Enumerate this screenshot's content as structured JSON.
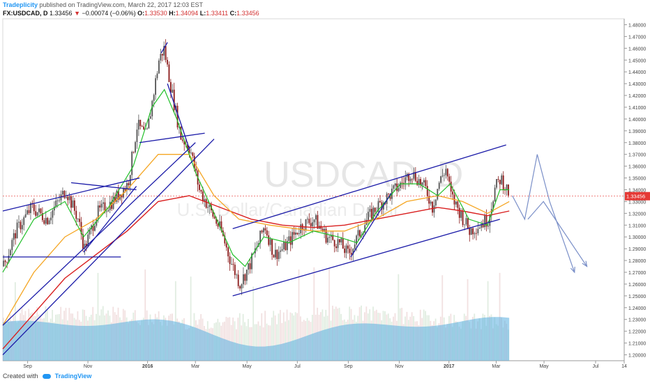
{
  "header": {
    "brand": "Tradeplicity",
    "published": "published on TradingView.com, March 22, 2017 12:03 EST"
  },
  "symbol_line": {
    "symbol": "FX:USDCAD, D",
    "last": "1.33456",
    "arrow": "▼",
    "change": "−0.00074 (−0.06%)",
    "o_label": "O:",
    "o_value": "1.33530",
    "h_label": "H:",
    "h_value": "1.34094",
    "l_label": "L:",
    "l_value": "1.33411",
    "c_label": "C:",
    "c_value": "1.33456"
  },
  "footer": {
    "created_with": "Created with",
    "tradingview": "TradingView"
  },
  "colors": {
    "up_candle": "#555555",
    "down_candle": "#8b1a1a",
    "ma_fast": "#22c02a",
    "ma_mid": "#f5a623",
    "ma_slow": "#d91e1e",
    "trendline": "#1a1aa8",
    "projection": "#7a8fc8",
    "volume": "#5aaee0",
    "price_tag": "#e53935"
  },
  "chart_data": {
    "type": "candlestick",
    "symbol": "USDCAD",
    "watermark": "USDCAD, D",
    "watermark_sub": "U.S. Dollar/Canadian Dollar",
    "ylim": [
      1.195,
      1.485
    ],
    "y_ticks": [
      "1.48000",
      "1.47000",
      "1.46000",
      "1.45000",
      "1.44000",
      "1.43000",
      "1.42000",
      "1.41000",
      "1.40000",
      "1.39000",
      "1.38000",
      "1.37000",
      "1.36000",
      "1.35000",
      "1.34000",
      "1.33000",
      "1.32000",
      "1.31000",
      "1.30000",
      "1.29000",
      "1.28000",
      "1.27000",
      "1.26000",
      "1.25000",
      "1.24000",
      "1.23000",
      "1.22000",
      "1.21000",
      "1.20000"
    ],
    "x_ticks": [
      {
        "label": "Sep",
        "pos": 0.04
      },
      {
        "label": "Nov",
        "pos": 0.137
      },
      {
        "label": "2016",
        "pos": 0.233
      },
      {
        "label": "Mar",
        "pos": 0.31
      },
      {
        "label": "May",
        "pos": 0.393
      },
      {
        "label": "Jul",
        "pos": 0.474
      },
      {
        "label": "Sep",
        "pos": 0.556
      },
      {
        "label": "Nov",
        "pos": 0.638
      },
      {
        "label": "2017",
        "pos": 0.718
      },
      {
        "label": "Mar",
        "pos": 0.794
      },
      {
        "label": "May",
        "pos": 0.871
      },
      {
        "label": "Jul",
        "pos": 0.954
      },
      {
        "label": "14",
        "pos": 1.0
      }
    ],
    "last_price": "1.33456",
    "last_price_value": 1.33456,
    "price_path": [
      [
        0,
        1.275
      ],
      [
        0.02,
        1.305
      ],
      [
        0.045,
        1.325
      ],
      [
        0.07,
        1.315
      ],
      [
        0.1,
        1.34
      ],
      [
        0.12,
        1.315
      ],
      [
        0.13,
        1.29
      ],
      [
        0.15,
        1.32
      ],
      [
        0.175,
        1.33
      ],
      [
        0.2,
        1.345
      ],
      [
        0.215,
        1.395
      ],
      [
        0.23,
        1.385
      ],
      [
        0.25,
        1.45
      ],
      [
        0.258,
        1.46
      ],
      [
        0.27,
        1.425
      ],
      [
        0.285,
        1.385
      ],
      [
        0.3,
        1.375
      ],
      [
        0.315,
        1.34
      ],
      [
        0.33,
        1.325
      ],
      [
        0.35,
        1.305
      ],
      [
        0.365,
        1.28
      ],
      [
        0.38,
        1.26
      ],
      [
        0.395,
        1.275
      ],
      [
        0.41,
        1.295
      ],
      [
        0.42,
        1.31
      ],
      [
        0.435,
        1.285
      ],
      [
        0.45,
        1.29
      ],
      [
        0.465,
        1.3
      ],
      [
        0.48,
        1.31
      ],
      [
        0.5,
        1.315
      ],
      [
        0.52,
        1.3
      ],
      [
        0.54,
        1.295
      ],
      [
        0.555,
        1.285
      ],
      [
        0.57,
        1.3
      ],
      [
        0.585,
        1.315
      ],
      [
        0.6,
        1.325
      ],
      [
        0.62,
        1.335
      ],
      [
        0.64,
        1.345
      ],
      [
        0.655,
        1.355
      ],
      [
        0.665,
        1.35
      ],
      [
        0.68,
        1.34
      ],
      [
        0.69,
        1.325
      ],
      [
        0.7,
        1.345
      ],
      [
        0.712,
        1.358
      ],
      [
        0.72,
        1.335
      ],
      [
        0.735,
        1.32
      ],
      [
        0.75,
        1.305
      ],
      [
        0.765,
        1.31
      ],
      [
        0.78,
        1.315
      ],
      [
        0.79,
        1.34
      ],
      [
        0.8,
        1.35
      ],
      [
        0.81,
        1.34
      ],
      [
        0.815,
        1.335
      ]
    ],
    "ma_fast_path": [
      [
        0,
        1.27
      ],
      [
        0.05,
        1.315
      ],
      [
        0.1,
        1.33
      ],
      [
        0.13,
        1.3
      ],
      [
        0.17,
        1.325
      ],
      [
        0.21,
        1.36
      ],
      [
        0.24,
        1.41
      ],
      [
        0.26,
        1.425
      ],
      [
        0.28,
        1.4
      ],
      [
        0.31,
        1.355
      ],
      [
        0.34,
        1.32
      ],
      [
        0.37,
        1.285
      ],
      [
        0.39,
        1.275
      ],
      [
        0.42,
        1.3
      ],
      [
        0.46,
        1.295
      ],
      [
        0.5,
        1.305
      ],
      [
        0.54,
        1.3
      ],
      [
        0.57,
        1.295
      ],
      [
        0.6,
        1.32
      ],
      [
        0.64,
        1.345
      ],
      [
        0.67,
        1.345
      ],
      [
        0.7,
        1.335
      ],
      [
        0.72,
        1.345
      ],
      [
        0.75,
        1.315
      ],
      [
        0.78,
        1.31
      ],
      [
        0.8,
        1.34
      ],
      [
        0.815,
        1.34
      ]
    ],
    "ma_mid_path": [
      [
        0,
        1.225
      ],
      [
        0.05,
        1.27
      ],
      [
        0.1,
        1.3
      ],
      [
        0.15,
        1.315
      ],
      [
        0.2,
        1.34
      ],
      [
        0.25,
        1.37
      ],
      [
        0.3,
        1.37
      ],
      [
        0.34,
        1.335
      ],
      [
        0.38,
        1.315
      ],
      [
        0.43,
        1.31
      ],
      [
        0.5,
        1.305
      ],
      [
        0.55,
        1.305
      ],
      [
        0.6,
        1.315
      ],
      [
        0.65,
        1.33
      ],
      [
        0.7,
        1.335
      ],
      [
        0.74,
        1.33
      ],
      [
        0.78,
        1.32
      ],
      [
        0.815,
        1.33
      ]
    ],
    "ma_slow_path": [
      [
        0,
        1.205
      ],
      [
        0.05,
        1.235
      ],
      [
        0.1,
        1.265
      ],
      [
        0.15,
        1.285
      ],
      [
        0.2,
        1.305
      ],
      [
        0.25,
        1.33
      ],
      [
        0.3,
        1.335
      ],
      [
        0.35,
        1.325
      ],
      [
        0.4,
        1.315
      ],
      [
        0.45,
        1.31
      ],
      [
        0.5,
        1.308
      ],
      [
        0.55,
        1.31
      ],
      [
        0.6,
        1.315
      ],
      [
        0.65,
        1.32
      ],
      [
        0.7,
        1.325
      ],
      [
        0.74,
        1.322
      ],
      [
        0.78,
        1.318
      ],
      [
        0.815,
        1.322
      ]
    ],
    "trendlines": [
      [
        [
          0.0,
          1.322
        ],
        [
          0.22,
          1.35
        ]
      ],
      [
        [
          0.11,
          1.346
        ],
        [
          0.215,
          1.34
        ]
      ],
      [
        [
          0.13,
          1.287
        ],
        [
          0.215,
          1.343
        ]
      ],
      [
        [
          0.0,
          1.283
        ],
        [
          0.19,
          1.283
        ]
      ],
      [
        [
          0.0,
          1.225
        ],
        [
          0.31,
          1.38
        ]
      ],
      [
        [
          0.0,
          1.2
        ],
        [
          0.34,
          1.383
        ]
      ],
      [
        [
          0.22,
          1.38
        ],
        [
          0.325,
          1.388
        ]
      ],
      [
        [
          0.255,
          1.456
        ],
        [
          0.265,
          1.465
        ]
      ],
      [
        [
          0.265,
          1.43
        ],
        [
          0.3,
          1.375
        ]
      ],
      [
        [
          0.37,
          1.307
        ],
        [
          0.81,
          1.378
        ]
      ],
      [
        [
          0.37,
          1.25
        ],
        [
          0.8,
          1.315
        ]
      ],
      [
        [
          0.56,
          1.283
        ],
        [
          0.625,
          1.337
        ]
      ]
    ],
    "projection": [
      [
        0.82,
        1.335
      ],
      [
        0.84,
        1.315
      ],
      [
        0.86,
        1.37
      ],
      [
        0.88,
        1.33
      ],
      [
        0.92,
        1.27
      ]
    ],
    "projection_b": [
      [
        0.845,
        1.315
      ],
      [
        0.87,
        1.33
      ],
      [
        0.94,
        1.275
      ]
    ]
  }
}
